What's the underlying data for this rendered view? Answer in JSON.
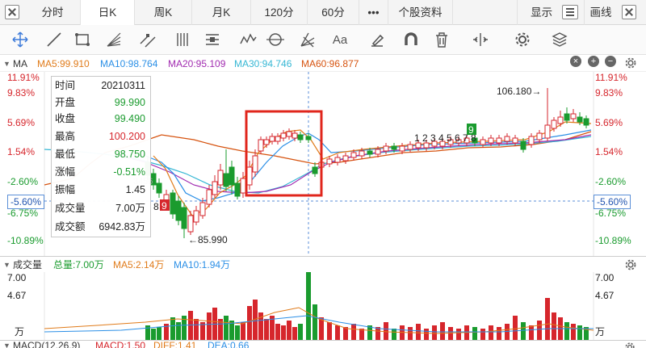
{
  "tabs": [
    "分时",
    "日K",
    "周K",
    "月K",
    "120分",
    "60分",
    "•••",
    "个股资料"
  ],
  "display_menu": "显示",
  "draw_line": "画线",
  "ma": {
    "label": "MA",
    "ma5": "MA5:99.910",
    "ma10": "MA10:98.764",
    "ma20": "MA20:95.109",
    "ma30": "MA30:94.746",
    "ma60": "MA60:96.877"
  },
  "y_axis_left": [
    "11.91%",
    "9.83%",
    "5.69%",
    "1.54%",
    "-2.60%",
    "-6.75%",
    "-10.89%"
  ],
  "y_axis_right": [
    "11.91%",
    "9.83%",
    "5.69%",
    "1.54%",
    "-2.60%",
    "-6.75%",
    "-10.89%"
  ],
  "cursor_value": "-5.60%",
  "markers": {
    "high": "106.180→",
    "low": "←85.990",
    "seq1": "1 2 3 4 5 6 7 8",
    "seq1_last": "9",
    "seq2": "8",
    "seq2_last": "9",
    "seq3": "3456"
  },
  "info_panel": {
    "date_label": "时间",
    "date": "20210311",
    "open_label": "开盘",
    "open": "99.990",
    "close_label": "收盘",
    "close": "99.490",
    "high_label": "最高",
    "high": "100.200",
    "low_label": "最低",
    "low": "98.750",
    "change_label": "涨幅",
    "change": "-0.51%",
    "amplitude_label": "振幅",
    "amplitude": "1.45",
    "volume_label": "成交量",
    "volume": "7.00万",
    "turnover_label": "成交额",
    "turnover": "6942.83万"
  },
  "volume": {
    "label": "成交量",
    "total": "总量:7.00万",
    "ma5": "MA5:2.14万",
    "ma10": "MA10:1.94万",
    "axis_left": [
      "7.00",
      "4.67",
      "万"
    ],
    "axis_right": [
      "7.00",
      "4.67",
      "万"
    ]
  },
  "macd": {
    "label": "MACD(12,26,9)",
    "macd": "MACD:1.50",
    "diff": "DIFF:1.41",
    "dea": "DEA:0.66"
  },
  "colors": {
    "up": "#d6262c",
    "down": "#1a9b2e",
    "ma5": "#e07b1a",
    "ma10": "#2b8fe6",
    "ma20": "#a12bb0",
    "ma30": "#36b7d4",
    "ma60": "#d6530f",
    "highlight_box": "#e0261c"
  }
}
